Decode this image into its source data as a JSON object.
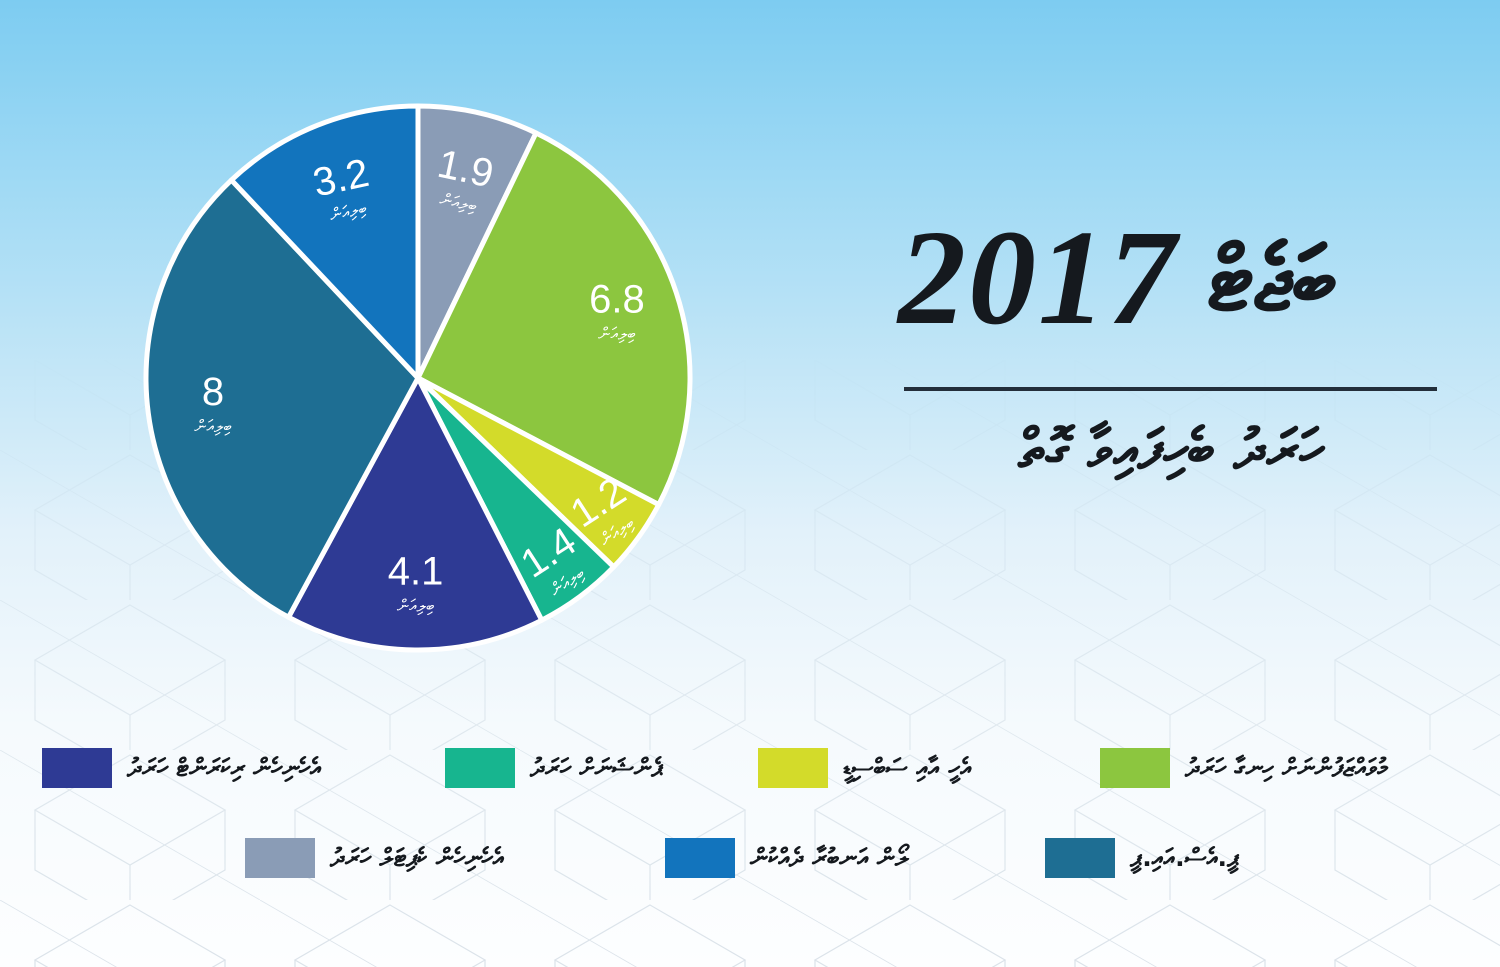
{
  "title": {
    "year": "2017",
    "word": "ބަޖެޓް"
  },
  "subtitle": "ހަރަދު ބެހިފައިވާ ގޮތް",
  "unit_label": "ބިލިއަން",
  "background": {
    "sky_top": "#7dccf1",
    "sky_bottom": "#fdfeff",
    "lineart_color": "#9db1c2"
  },
  "chart_data": {
    "type": "pie",
    "title": "ބަޖެޓް 2017 — ހަރަދު ބެހިފައިވާ ގޮތް",
    "unit": "ބިލިއަން",
    "direction": "clockwise",
    "start_angle_deg": 0,
    "legend_position": "bottom",
    "slices": [
      {
        "label": "އެހެނިހެން ކެޕިޓަލް ހަރަދު",
        "value": 1.9,
        "value_display": "1.9",
        "color": "#8a9cb6"
      },
      {
        "label": "މުވައްޒަފުންނަށް ހިނގާ ހަރަދު",
        "value": 6.8,
        "value_display": "6.8",
        "color": "#8cc63f"
      },
      {
        "label": "އެހީ އާއި ސަބްސިޑީ",
        "value": 1.2,
        "value_display": "1.2",
        "color": "#d3db2a"
      },
      {
        "label": "ޕެންޝަނަށް ހަރަދު",
        "value": 1.4,
        "value_display": "1.4",
        "color": "#17b58f"
      },
      {
        "label": "އެހެނިހެން ރިކަރަންޓް ހަރަދު",
        "value": 4.1,
        "value_display": "4.1",
        "color": "#2e3a94"
      },
      {
        "label": "ޕީ.އެސް.އައި.ޕީ",
        "value": 8,
        "value_display": "8",
        "color": "#1e6e93"
      },
      {
        "label": "ލޯން އަނބުރާ ދެއްކުން",
        "value": 3.2,
        "value_display": "3.2",
        "color": "#1274bd"
      }
    ]
  }
}
